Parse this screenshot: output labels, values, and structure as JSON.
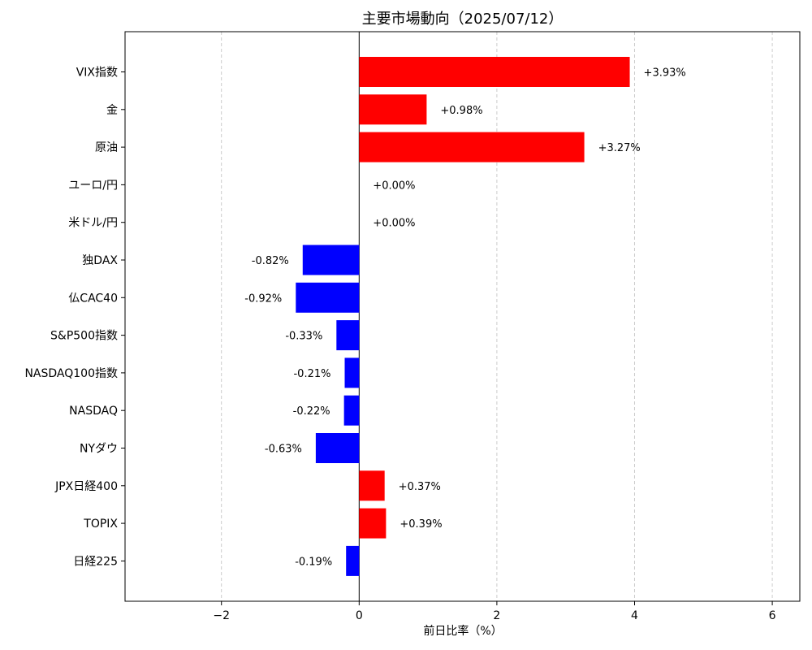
{
  "chart_data": {
    "type": "bar",
    "orientation": "horizontal",
    "title": "主要市場動向（2025/07/12）",
    "xlabel": "前日比率（%）",
    "ylabel": "",
    "xlim": [
      -3.4,
      6.4
    ],
    "xticks": [
      {
        "value": -2,
        "label": "−2"
      },
      {
        "value": 0,
        "label": "0"
      },
      {
        "value": 2,
        "label": "2"
      },
      {
        "value": 4,
        "label": "4"
      },
      {
        "value": 6,
        "label": "6"
      }
    ],
    "grid": "x-dashed",
    "colors": {
      "positive": "#ff0000",
      "negative": "#0000ff"
    },
    "categories": [
      "VIX指数",
      "金",
      "原油",
      "ユーロ/円",
      "米ドル/円",
      "独DAX",
      "仏CAC40",
      "S&P500指数",
      "NASDAQ100指数",
      "NASDAQ",
      "NYダウ",
      "JPX日経400",
      "TOPIX",
      "日経225"
    ],
    "values": [
      3.93,
      0.98,
      3.27,
      0.0,
      0.0,
      -0.82,
      -0.92,
      -0.33,
      -0.21,
      -0.22,
      -0.63,
      0.37,
      0.39,
      -0.19
    ],
    "data_labels": [
      "+3.93%",
      "+0.98%",
      "+3.27%",
      "+0.00%",
      "+0.00%",
      "-0.82%",
      "-0.92%",
      "-0.33%",
      "-0.21%",
      "-0.22%",
      "-0.63%",
      "+0.37%",
      "+0.39%",
      "-0.19%"
    ]
  }
}
